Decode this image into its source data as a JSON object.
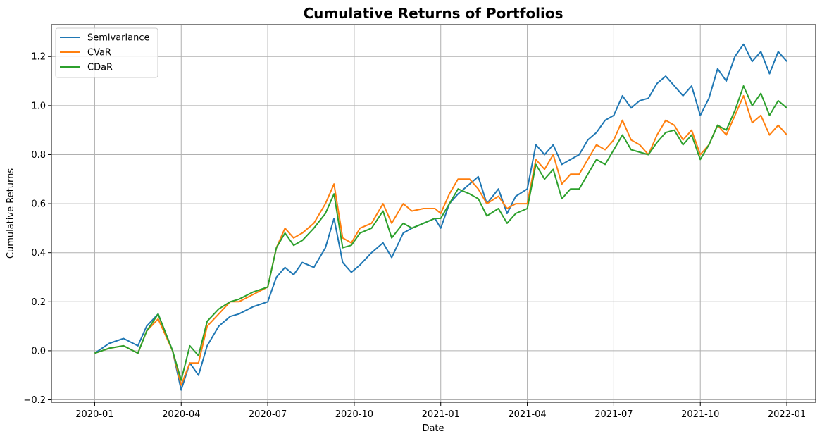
{
  "chart_data": {
    "type": "line",
    "title": "Cumulative Returns of Portfolios",
    "xlabel": "Date",
    "ylabel": "Cumulative Returns",
    "x_ticks": [
      "2020-01",
      "2020-04",
      "2020-07",
      "2020-10",
      "2021-01",
      "2021-04",
      "2021-07",
      "2021-10",
      "2022-01"
    ],
    "x_tick_months": [
      0,
      3,
      6,
      9,
      12,
      15,
      18,
      21,
      24
    ],
    "xlim": [
      -1.5,
      25
    ],
    "y_ticks": [
      -0.2,
      0.0,
      0.2,
      0.4,
      0.6,
      0.8,
      1.0,
      1.2
    ],
    "y_tick_labels": [
      "−0.2",
      "0.0",
      "0.2",
      "0.4",
      "0.6",
      "0.8",
      "1.0",
      "1.2"
    ],
    "ylim": [
      -0.21,
      1.33
    ],
    "grid": true,
    "legend_position": "top-left",
    "x_unit": "months since 2020-01",
    "series": [
      {
        "name": "Semivariance",
        "color": "#1f77b4",
        "x": [
          0,
          0.5,
          1,
          1.5,
          1.8,
          2.2,
          2.7,
          3,
          3.3,
          3.6,
          3.9,
          4.3,
          4.7,
          5,
          5.5,
          6,
          6.3,
          6.6,
          6.9,
          7.2,
          7.6,
          8,
          8.3,
          8.6,
          8.9,
          9.2,
          9.6,
          10,
          10.3,
          10.7,
          11,
          11.4,
          11.8,
          12,
          12.3,
          12.6,
          13,
          13.3,
          13.6,
          14,
          14.3,
          14.6,
          15,
          15.3,
          15.6,
          15.9,
          16.2,
          16.5,
          16.8,
          17.1,
          17.4,
          17.7,
          18,
          18.3,
          18.6,
          18.9,
          19.2,
          19.5,
          19.8,
          20.1,
          20.4,
          20.7,
          21,
          21.3,
          21.6,
          21.9,
          22.2,
          22.5,
          22.8,
          23.1,
          23.4,
          23.7,
          24
        ],
        "values": [
          -0.01,
          0.03,
          0.05,
          0.02,
          0.1,
          0.15,
          0.0,
          -0.16,
          -0.05,
          -0.1,
          0.02,
          0.1,
          0.14,
          0.15,
          0.18,
          0.2,
          0.3,
          0.34,
          0.31,
          0.36,
          0.34,
          0.42,
          0.54,
          0.36,
          0.32,
          0.35,
          0.4,
          0.44,
          0.38,
          0.48,
          0.5,
          0.52,
          0.54,
          0.5,
          0.6,
          0.64,
          0.68,
          0.71,
          0.6,
          0.66,
          0.56,
          0.63,
          0.66,
          0.84,
          0.8,
          0.84,
          0.76,
          0.78,
          0.8,
          0.86,
          0.89,
          0.94,
          0.96,
          1.04,
          0.99,
          1.02,
          1.03,
          1.09,
          1.12,
          1.08,
          1.04,
          1.08,
          0.96,
          1.03,
          1.15,
          1.1,
          1.2,
          1.25,
          1.18,
          1.22,
          1.13,
          1.22,
          1.18
        ]
      },
      {
        "name": "CVaR",
        "color": "#ff7f0e",
        "x": [
          0,
          0.5,
          1,
          1.5,
          1.8,
          2.2,
          2.7,
          3,
          3.3,
          3.6,
          3.9,
          4.3,
          4.7,
          5,
          5.5,
          6,
          6.3,
          6.6,
          6.9,
          7.2,
          7.6,
          8,
          8.3,
          8.6,
          8.9,
          9.2,
          9.6,
          10,
          10.3,
          10.7,
          11,
          11.4,
          11.8,
          12,
          12.3,
          12.6,
          13,
          13.3,
          13.6,
          14,
          14.3,
          14.6,
          15,
          15.3,
          15.6,
          15.9,
          16.2,
          16.5,
          16.8,
          17.1,
          17.4,
          17.7,
          18,
          18.3,
          18.6,
          18.9,
          19.2,
          19.5,
          19.8,
          20.1,
          20.4,
          20.7,
          21,
          21.3,
          21.6,
          21.9,
          22.2,
          22.5,
          22.8,
          23.1,
          23.4,
          23.7,
          24
        ],
        "values": [
          -0.01,
          0.01,
          0.02,
          -0.01,
          0.08,
          0.13,
          0.0,
          -0.14,
          -0.05,
          -0.05,
          0.1,
          0.15,
          0.2,
          0.2,
          0.23,
          0.26,
          0.42,
          0.5,
          0.46,
          0.48,
          0.52,
          0.6,
          0.68,
          0.46,
          0.44,
          0.5,
          0.52,
          0.6,
          0.52,
          0.6,
          0.57,
          0.58,
          0.58,
          0.56,
          0.64,
          0.7,
          0.7,
          0.66,
          0.6,
          0.63,
          0.58,
          0.6,
          0.6,
          0.78,
          0.74,
          0.8,
          0.68,
          0.72,
          0.72,
          0.78,
          0.84,
          0.82,
          0.86,
          0.94,
          0.86,
          0.84,
          0.8,
          0.88,
          0.94,
          0.92,
          0.86,
          0.9,
          0.8,
          0.84,
          0.92,
          0.88,
          0.96,
          1.04,
          0.93,
          0.96,
          0.88,
          0.92,
          0.88
        ]
      },
      {
        "name": "CDaR",
        "color": "#2ca02c",
        "x": [
          0,
          0.5,
          1,
          1.5,
          1.8,
          2.2,
          2.7,
          3,
          3.3,
          3.6,
          3.9,
          4.3,
          4.7,
          5,
          5.5,
          6,
          6.3,
          6.6,
          6.9,
          7.2,
          7.6,
          8,
          8.3,
          8.6,
          8.9,
          9.2,
          9.6,
          10,
          10.3,
          10.7,
          11,
          11.4,
          11.8,
          12,
          12.3,
          12.6,
          13,
          13.3,
          13.6,
          14,
          14.3,
          14.6,
          15,
          15.3,
          15.6,
          15.9,
          16.2,
          16.5,
          16.8,
          17.1,
          17.4,
          17.7,
          18,
          18.3,
          18.6,
          18.9,
          19.2,
          19.5,
          19.8,
          20.1,
          20.4,
          20.7,
          21,
          21.3,
          21.6,
          21.9,
          22.2,
          22.5,
          22.8,
          23.1,
          23.4,
          23.7,
          24
        ],
        "values": [
          -0.01,
          0.01,
          0.02,
          -0.01,
          0.08,
          0.15,
          0.0,
          -0.12,
          0.02,
          -0.02,
          0.12,
          0.17,
          0.2,
          0.21,
          0.24,
          0.26,
          0.42,
          0.48,
          0.43,
          0.45,
          0.5,
          0.56,
          0.64,
          0.42,
          0.43,
          0.48,
          0.5,
          0.57,
          0.46,
          0.52,
          0.5,
          0.52,
          0.54,
          0.54,
          0.6,
          0.66,
          0.64,
          0.62,
          0.55,
          0.58,
          0.52,
          0.56,
          0.58,
          0.76,
          0.7,
          0.74,
          0.62,
          0.66,
          0.66,
          0.72,
          0.78,
          0.76,
          0.82,
          0.88,
          0.82,
          0.81,
          0.8,
          0.85,
          0.89,
          0.9,
          0.84,
          0.88,
          0.78,
          0.84,
          0.92,
          0.9,
          0.98,
          1.08,
          1.0,
          1.05,
          0.96,
          1.02,
          0.99
        ]
      }
    ]
  }
}
